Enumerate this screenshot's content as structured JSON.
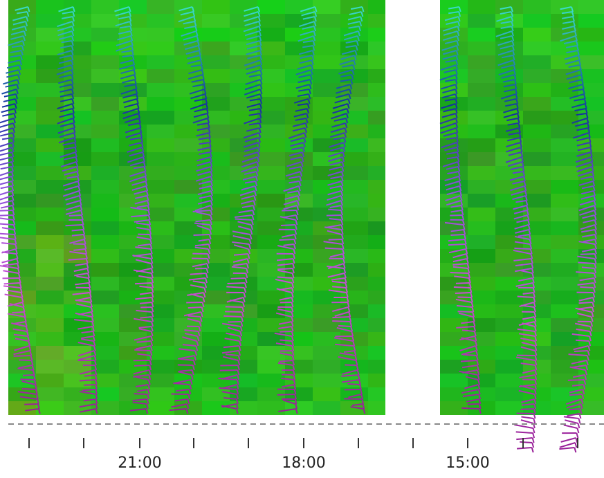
{
  "axis": {
    "tick_labels": [
      "21:00",
      "18:00",
      "15:00"
    ]
  }
}
